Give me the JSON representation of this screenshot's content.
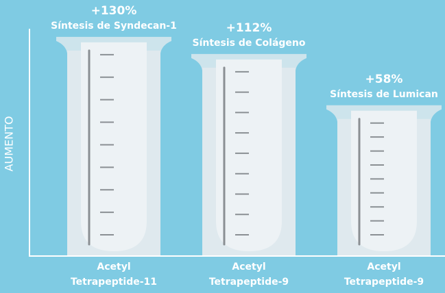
{
  "chart_data": {
    "type": "beaker",
    "y_label": "AUMENTO",
    "categories": [
      "Acetyl Tetrapeptide-11",
      "Acetyl Tetrapeptide-9",
      "Acetyl Tetrapeptide-9"
    ],
    "values": [
      130,
      112,
      58
    ],
    "value_labels": [
      "+130%",
      "+112%",
      "+58%"
    ],
    "descriptions": [
      "Síntesis de Syndecan-1",
      "Síntesis de Colágeno",
      "Síntesis de Lumican"
    ],
    "ylim": [
      -100,
      140
    ]
  }
}
